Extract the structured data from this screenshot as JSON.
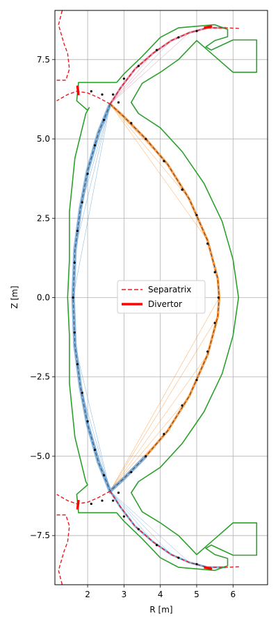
{
  "chart_data": {
    "type": "line",
    "title": "",
    "xlabel": "R [m]",
    "ylabel": "Z [m]",
    "xlim": [
      1.1,
      6.95
    ],
    "ylim": [
      -9.05,
      9.05
    ],
    "grid": true,
    "legend_position": "center",
    "x_ticks": [
      {
        "value": 2,
        "label": "2"
      },
      {
        "value": 3,
        "label": "3"
      },
      {
        "value": 4,
        "label": "4"
      },
      {
        "value": 5,
        "label": "5"
      },
      {
        "value": 6,
        "label": "6"
      }
    ],
    "y_ticks": [
      {
        "value": 7.5,
        "label": "7.5"
      },
      {
        "value": 5.0,
        "label": "5.0"
      },
      {
        "value": 2.5,
        "label": "2.5"
      },
      {
        "value": 0.0,
        "label": "0.0"
      },
      {
        "value": -2.5,
        "label": "−2.5"
      },
      {
        "value": -5.0,
        "label": "−5.0"
      },
      {
        "value": -7.5,
        "label": "−7.5"
      }
    ],
    "legend": [
      {
        "label": "Separatrix",
        "color": "#e8191a",
        "style": "dashed"
      },
      {
        "label": "Divertor",
        "color": "#ff0000",
        "style": "solid"
      }
    ],
    "colors": {
      "wall": "#2ca02c",
      "separatrix": "#e8191a",
      "divertor": "#ff0000",
      "inner_leg_fan": "#5b9bd5",
      "outer_leg_fan": "#ff7f0e",
      "upper_outer_fan": "#c9739a",
      "grid": "#b0b0b0",
      "points": "#000000"
    },
    "series": {
      "wall_outer": [
        [
          2.8,
          6.78
        ],
        [
          3.0,
          7.05
        ],
        [
          3.5,
          7.6
        ],
        [
          4.0,
          8.2
        ],
        [
          4.5,
          8.5
        ],
        [
          5.5,
          8.6
        ],
        [
          5.85,
          8.45
        ],
        [
          5.85,
          8.22
        ],
        [
          5.5,
          8.1
        ],
        [
          5.25,
          7.9
        ],
        [
          5.4,
          7.8
        ],
        [
          6.0,
          8.12
        ],
        [
          6.65,
          8.12
        ],
        [
          6.65,
          7.1
        ],
        [
          6.0,
          7.1
        ],
        [
          5.5,
          7.6
        ],
        [
          5.0,
          8.1
        ],
        [
          4.5,
          7.5
        ],
        [
          4.0,
          7.1
        ],
        [
          3.5,
          6.75
        ],
        [
          3.2,
          6.15
        ],
        [
          3.4,
          5.8
        ],
        [
          4.0,
          5.35
        ],
        [
          4.6,
          4.6
        ],
        [
          5.2,
          3.6
        ],
        [
          5.7,
          2.4
        ],
        [
          6.0,
          1.2
        ],
        [
          6.15,
          0.0
        ],
        [
          6.0,
          -1.2
        ],
        [
          5.7,
          -2.4
        ],
        [
          5.2,
          -3.6
        ],
        [
          4.6,
          -4.6
        ],
        [
          4.0,
          -5.35
        ],
        [
          3.4,
          -5.8
        ],
        [
          3.2,
          -6.15
        ],
        [
          3.5,
          -6.75
        ],
        [
          4.0,
          -7.1
        ],
        [
          4.5,
          -7.5
        ],
        [
          5.0,
          -8.1
        ],
        [
          5.5,
          -7.6
        ],
        [
          6.0,
          -7.1
        ],
        [
          6.65,
          -7.1
        ],
        [
          6.65,
          -8.12
        ],
        [
          6.0,
          -8.12
        ],
        [
          5.4,
          -7.8
        ],
        [
          5.25,
          -7.9
        ],
        [
          5.5,
          -8.1
        ],
        [
          5.85,
          -8.22
        ],
        [
          5.85,
          -8.45
        ],
        [
          5.5,
          -8.6
        ],
        [
          4.5,
          -8.5
        ],
        [
          4.0,
          -8.2
        ],
        [
          3.5,
          -7.6
        ],
        [
          3.0,
          -7.05
        ],
        [
          2.8,
          -6.78
        ]
      ],
      "wall_inner_upper": [
        [
          1.5,
          1.2
        ],
        [
          1.5,
          2.7
        ],
        [
          1.65,
          4.4
        ],
        [
          1.95,
          5.8
        ],
        [
          2.0,
          5.9
        ],
        [
          1.7,
          6.2
        ],
        [
          1.75,
          6.78
        ],
        [
          2.5,
          6.78
        ],
        [
          2.8,
          6.78
        ]
      ],
      "wall_inner_lower": [
        [
          1.5,
          -1.2
        ],
        [
          1.5,
          -2.7
        ],
        [
          1.65,
          -4.4
        ],
        [
          1.95,
          -5.8
        ],
        [
          2.0,
          -5.9
        ],
        [
          1.7,
          -6.2
        ],
        [
          1.75,
          -6.78
        ],
        [
          2.5,
          -6.78
        ],
        [
          2.8,
          -6.78
        ]
      ],
      "wall_inner_mid": [
        [
          1.5,
          1.2
        ],
        [
          1.45,
          0.0
        ],
        [
          1.5,
          -1.2
        ]
      ],
      "wall_inner_upper_tip": [
        [
          2.0,
          5.9
        ],
        [
          2.05,
          6.0
        ]
      ],
      "separatrix_plasma": [
        [
          2.62,
          6.1
        ],
        [
          2.3,
          5.2
        ],
        [
          2.0,
          4.0
        ],
        [
          1.8,
          2.8
        ],
        [
          1.65,
          1.5
        ],
        [
          1.6,
          0.0
        ],
        [
          1.65,
          -1.5
        ],
        [
          1.8,
          -2.8
        ],
        [
          2.0,
          -4.0
        ],
        [
          2.3,
          -5.2
        ],
        [
          2.62,
          -6.1
        ],
        [
          3.0,
          -5.7
        ],
        [
          3.6,
          -5.0
        ],
        [
          4.2,
          -4.2
        ],
        [
          4.8,
          -3.1
        ],
        [
          5.3,
          -1.8
        ],
        [
          5.58,
          -0.6
        ],
        [
          5.62,
          0.0
        ],
        [
          5.58,
          0.6
        ],
        [
          5.3,
          1.8
        ],
        [
          4.8,
          3.1
        ],
        [
          4.2,
          4.2
        ],
        [
          3.6,
          5.0
        ],
        [
          3.0,
          5.7
        ],
        [
          2.62,
          6.1
        ]
      ],
      "separatrix_upper_outer_leg": [
        [
          2.62,
          6.1
        ],
        [
          2.9,
          6.6
        ],
        [
          3.3,
          7.2
        ],
        [
          3.8,
          7.7
        ],
        [
          4.3,
          8.1
        ],
        [
          4.8,
          8.35
        ],
        [
          5.3,
          8.5
        ],
        [
          5.8,
          8.5
        ],
        [
          6.2,
          8.48
        ]
      ],
      "separatrix_lower_outer_leg": [
        [
          2.62,
          -6.1
        ],
        [
          2.9,
          -6.6
        ],
        [
          3.3,
          -7.2
        ],
        [
          3.8,
          -7.7
        ],
        [
          4.3,
          -8.1
        ],
        [
          4.8,
          -8.35
        ],
        [
          5.3,
          -8.5
        ],
        [
          5.8,
          -8.5
        ],
        [
          6.2,
          -8.48
        ]
      ],
      "separatrix_upper_inner_leg": [
        [
          2.62,
          6.1
        ],
        [
          2.3,
          6.3
        ],
        [
          2.0,
          6.45
        ],
        [
          1.7,
          6.5
        ],
        [
          1.45,
          6.4
        ],
        [
          1.15,
          6.2
        ]
      ],
      "separatrix_lower_inner_leg": [
        [
          2.62,
          -6.1
        ],
        [
          2.3,
          -6.3
        ],
        [
          2.0,
          -6.45
        ],
        [
          1.7,
          -6.5
        ],
        [
          1.45,
          -6.4
        ],
        [
          1.15,
          -6.2
        ]
      ],
      "separatrix_far_upper": [
        [
          1.15,
          6.85
        ],
        [
          1.4,
          6.85
        ],
        [
          1.5,
          7.2
        ],
        [
          1.45,
          7.7
        ],
        [
          1.35,
          8.0
        ],
        [
          1.2,
          8.6
        ],
        [
          1.3,
          9.05
        ]
      ],
      "separatrix_far_lower": [
        [
          1.15,
          -6.85
        ],
        [
          1.4,
          -6.85
        ],
        [
          1.5,
          -7.2
        ],
        [
          1.45,
          -7.7
        ],
        [
          1.35,
          -8.0
        ],
        [
          1.2,
          -8.6
        ],
        [
          1.3,
          -9.05
        ]
      ],
      "divertor_upper_inner": [
        [
          1.75,
          6.38
        ],
        [
          1.72,
          6.68
        ]
      ],
      "divertor_lower_inner": [
        [
          1.75,
          -6.38
        ],
        [
          1.72,
          -6.68
        ]
      ],
      "divertor_upper_outer": [
        [
          5.2,
          8.5
        ],
        [
          5.42,
          8.55
        ]
      ],
      "divertor_lower_outer": [
        [
          5.2,
          -8.5
        ],
        [
          5.42,
          -8.55
        ]
      ],
      "plasma_points": [
        [
          2.45,
          5.6
        ],
        [
          2.2,
          4.8
        ],
        [
          2.0,
          3.9
        ],
        [
          1.85,
          3.0
        ],
        [
          1.72,
          2.1
        ],
        [
          1.64,
          1.1
        ],
        [
          1.6,
          0.0
        ],
        [
          1.64,
          -1.1
        ],
        [
          1.72,
          -2.1
        ],
        [
          1.85,
          -3.0
        ],
        [
          2.0,
          -3.9
        ],
        [
          2.2,
          -4.8
        ],
        [
          2.45,
          -5.6
        ],
        [
          3.2,
          5.5
        ],
        [
          3.6,
          5.0
        ],
        [
          4.1,
          4.3
        ],
        [
          4.6,
          3.4
        ],
        [
          5.0,
          2.6
        ],
        [
          5.3,
          1.7
        ],
        [
          5.5,
          0.8
        ],
        [
          5.6,
          0.0
        ],
        [
          5.5,
          -0.8
        ],
        [
          5.3,
          -1.7
        ],
        [
          5.0,
          -2.6
        ],
        [
          4.6,
          -3.4
        ],
        [
          4.1,
          -4.3
        ],
        [
          3.6,
          -5.0
        ],
        [
          3.2,
          -5.5
        ],
        [
          3.0,
          6.9
        ],
        [
          3.4,
          7.3
        ],
        [
          3.9,
          7.8
        ],
        [
          4.5,
          8.2
        ],
        [
          5.0,
          8.4
        ],
        [
          3.0,
          -6.9
        ],
        [
          3.4,
          -7.3
        ],
        [
          3.9,
          -7.8
        ],
        [
          4.5,
          -8.2
        ],
        [
          5.0,
          -8.4
        ],
        [
          2.1,
          6.5
        ],
        [
          2.4,
          6.4
        ],
        [
          2.7,
          6.4
        ],
        [
          2.85,
          6.15
        ],
        [
          2.1,
          -6.5
        ],
        [
          2.4,
          -6.4
        ],
        [
          2.7,
          -6.4
        ],
        [
          2.85,
          -6.15
        ]
      ]
    }
  }
}
